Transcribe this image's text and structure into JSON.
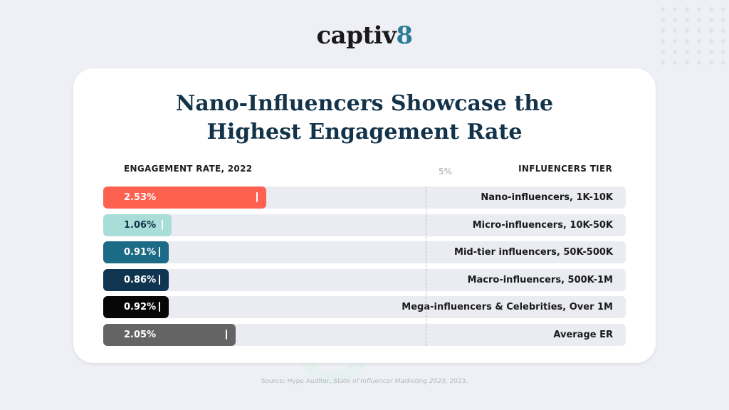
{
  "brand": {
    "prefix": "captiv",
    "suffix": "8",
    "accent_color": "#2b7c96"
  },
  "title_lines": [
    "Nano-Influencers Showcase the",
    "Highest Engagement Rate"
  ],
  "source_text": {
    "prefix": "Source: Hype Auditor, ",
    "italic": "State of Influencer Marketing 2023",
    "suffix": ", 2023."
  },
  "chart_data": {
    "type": "bar",
    "orientation": "horizontal",
    "left_header": "ENGAGEMENT RATE, 2022",
    "right_header": "INFLUENCERS TIER",
    "reference_label": "5%",
    "reference_value": 5,
    "xlim": [
      0,
      8.1
    ],
    "categories": [
      "Nano-influencers, 1K-10K",
      "Micro-influencers, 10K-50K",
      "Mid-tier influencers, 50K-500K",
      "Macro-influencers, 500K-1M",
      "Mega-influencers & Celebrities, Over 1M",
      "Average ER"
    ],
    "values": [
      2.53,
      1.06,
      0.91,
      0.86,
      0.92,
      2.05
    ],
    "value_labels": [
      "2.53%",
      "1.06%",
      "0.91%",
      "0.86%",
      "0.92%",
      "2.05%"
    ],
    "bar_colors": [
      "#ff6150",
      "#a8ddd8",
      "#1b6a86",
      "#0f3550",
      "#070707",
      "#646464"
    ],
    "label_colors": [
      "#ffffff",
      "#13334a",
      "#ffffff",
      "#ffffff",
      "#ffffff",
      "#ffffff"
    ],
    "grid": false,
    "legend": "none"
  }
}
